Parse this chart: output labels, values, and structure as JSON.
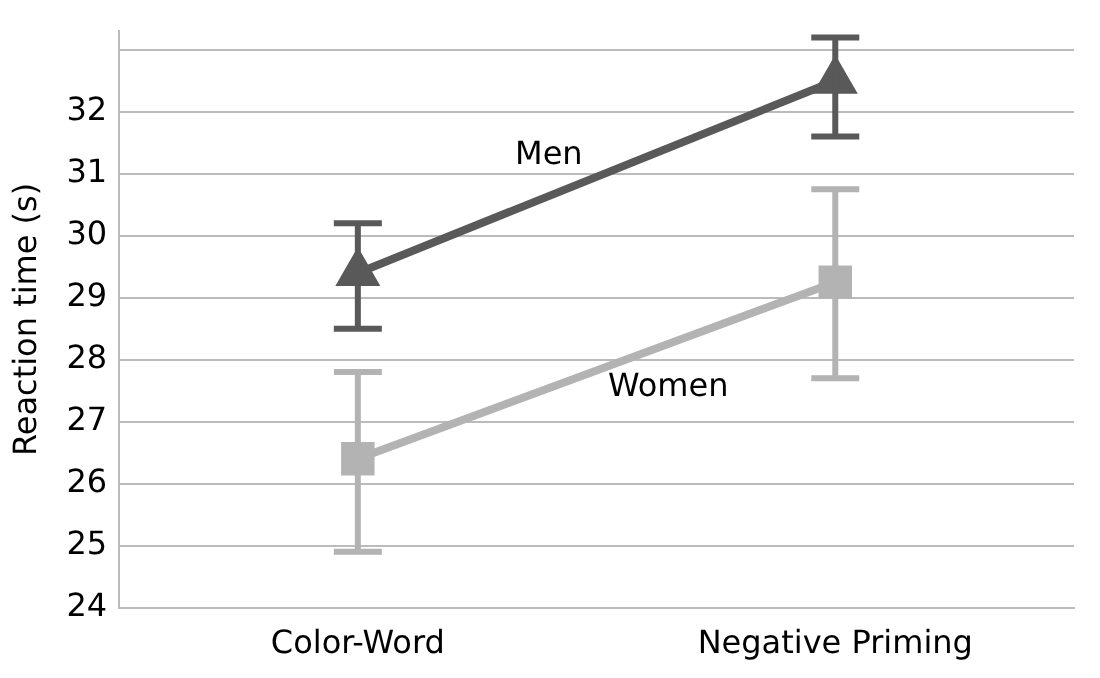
{
  "chart_data": {
    "type": "line",
    "ylabel": "Reaction time (s)",
    "categories": [
      "Color-Word",
      "Negative Priming"
    ],
    "series": [
      {
        "name": "Men",
        "color": "#595959",
        "marker": "triangle",
        "values": [
          29.4,
          32.5
        ],
        "errors": [
          [
            28.5,
            30.2
          ],
          [
            31.6,
            33.2
          ]
        ]
      },
      {
        "name": "Women",
        "color": "#b3b3b3",
        "marker": "square",
        "values": [
          26.4,
          29.25
        ],
        "errors": [
          [
            24.9,
            27.8
          ],
          [
            27.7,
            30.75
          ]
        ]
      }
    ],
    "ylim": [
      24,
      33.3
    ],
    "yticks": [
      24,
      25,
      26,
      27,
      28,
      29,
      30,
      31,
      32,
      {
        "value": 33,
        "label": null
      }
    ],
    "grid": "y",
    "legend": false
  }
}
